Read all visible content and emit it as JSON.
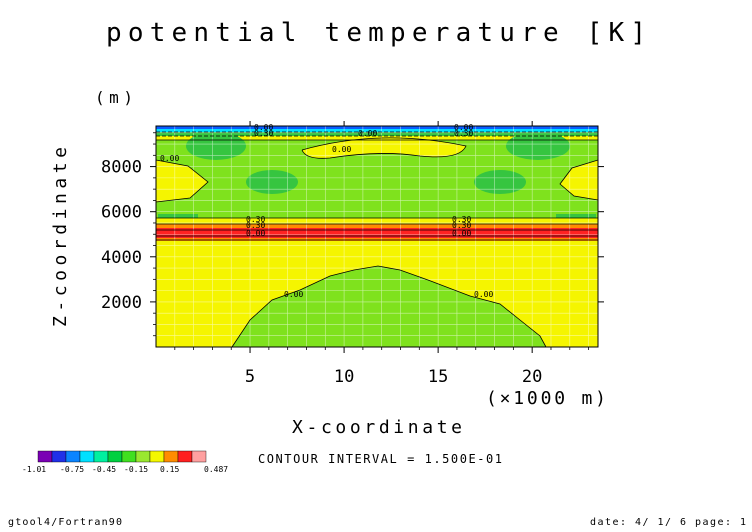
{
  "chart_data": {
    "type": "heatmap",
    "title": "potential temperature [K]",
    "xlabel": "X-coordinate",
    "ylabel": "Z-coordinate",
    "x_unit": "(×1000 m)",
    "y_unit": "(m)",
    "xlim": [
      0,
      23.5
    ],
    "ylim": [
      0,
      9800
    ],
    "xticks": [
      5,
      10,
      15,
      20
    ],
    "yticks": [
      2000,
      4000,
      6000,
      8000
    ],
    "contour_interval_text": "CONTOUR INTERVAL = 1.500E-01",
    "contour_labels": [
      "0.00",
      "0.30",
      "0.00",
      "0.30",
      "0.00",
      "0.00",
      "0.00",
      "0.30",
      "0.30",
      "0.00",
      "0.30",
      "0.30",
      "0.00",
      "0.00",
      "0.00"
    ],
    "colorbar": {
      "colors": [
        "#7a00b4",
        "#2030e8",
        "#0a84ff",
        "#00e0ff",
        "#00f0a0",
        "#00d040",
        "#40e020",
        "#9ae830",
        "#f4f800",
        "#ff8c00",
        "#ff2020",
        "#ffa0a0"
      ],
      "labels": [
        "-1.01",
        "-0.75",
        "-0.45",
        "-0.15",
        "0.15",
        "0.487"
      ]
    },
    "fill_colors": {
      "green": "#7fe21d",
      "yellow": "#f5f500",
      "dark_green": "#36c540",
      "orange": "#ff8c00",
      "red": "#ff2222",
      "cyan": "#00e0ff",
      "blue": "#0a5cff"
    }
  },
  "footer": {
    "left": "gtool4/Fortran90",
    "right": "date: 4/ 1/ 6 page: 1"
  }
}
